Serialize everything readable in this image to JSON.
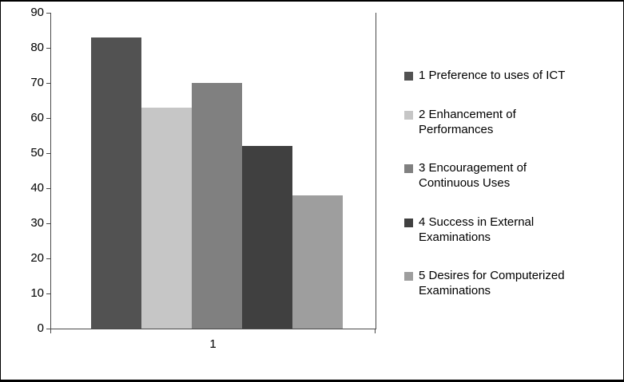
{
  "chart_data": {
    "type": "bar",
    "categories": [
      "1"
    ],
    "series": [
      {
        "name": "1 Preference to uses of ICT",
        "values": [
          83
        ],
        "color": "#525252"
      },
      {
        "name": "2 Enhancement of Performances",
        "values": [
          63
        ],
        "color": "#c6c6c6"
      },
      {
        "name": "3 Encouragement of Continuous Uses",
        "values": [
          70
        ],
        "color": "#808080"
      },
      {
        "name": "4 Success in External Examinations",
        "values": [
          52
        ],
        "color": "#404040"
      },
      {
        "name": "5 Desires for Computerized Examinations",
        "values": [
          38
        ],
        "color": "#9e9e9e"
      }
    ],
    "title": "",
    "xlabel": "",
    "ylabel": "",
    "ylim": [
      0,
      90
    ],
    "ytick_step": 10,
    "y_tick_labels": [
      "0",
      "10",
      "20",
      "30",
      "40",
      "50",
      "60",
      "70",
      "80",
      "90"
    ],
    "grid": false,
    "legend_position": "right"
  },
  "legend": {
    "items": [
      {
        "label": "1 Preference to uses of ICT",
        "color": "#525252"
      },
      {
        "label": "2 Enhancement of\nPerformances",
        "color": "#c6c6c6"
      },
      {
        "label": "3 Encouragement of\nContinuous Uses",
        "color": "#808080"
      },
      {
        "label": "4 Success in External\nExaminations",
        "color": "#404040"
      },
      {
        "label": "5 Desires for Computerized\nExaminations",
        "color": "#9e9e9e"
      }
    ]
  },
  "colors": {
    "axis": "#4a4a4a",
    "background": "#ffffff",
    "border": "#000000"
  }
}
